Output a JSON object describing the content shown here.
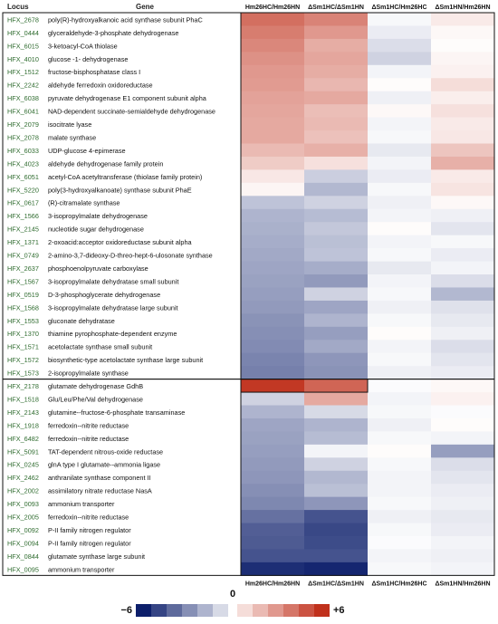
{
  "chart_data": {
    "type": "heatmap",
    "header": {
      "locus": "Locus",
      "gene": "Gene"
    },
    "columns": [
      "Hm26HC/Hm26HN",
      "ΔSm1HC/ΔSm1HN",
      "ΔSm1HC/Hm26HC",
      "ΔSm1HN/Hm26HN"
    ],
    "footer_columns": [
      "Hm26HC/Hm26HN",
      "ΔSm1HC/ΔSm1HN",
      "ΔSm1HC/Hm26HC",
      "ΔSm1HN/Hm26HN"
    ],
    "groups": [
      {
        "rows": 28
      },
      {
        "rows": 15
      }
    ],
    "rows": [
      {
        "locus": "HFX_2678",
        "gene": "poly(R)-hydroxyalkanoic acid synthase subunit PhaC",
        "values": [
          4.2,
          3.6,
          -0.2,
          0.6
        ]
      },
      {
        "locus": "HFX_0444",
        "gene": "glyceraldehyde-3-phosphate dehydrogenase",
        "values": [
          3.8,
          3.0,
          -0.5,
          0.2
        ]
      },
      {
        "locus": "HFX_6015",
        "gene": "3-ketoacyl-CoA thiolase",
        "values": [
          3.5,
          2.4,
          -0.9,
          0.1
        ]
      },
      {
        "locus": "HFX_4010",
        "gene": "glucose -1- dehydrogenase",
        "values": [
          3.2,
          2.6,
          -1.2,
          0.3
        ]
      },
      {
        "locus": "HFX_1512",
        "gene": "fructose-bisphosphatase class I",
        "values": [
          3.0,
          2.4,
          -0.3,
          0.4
        ]
      },
      {
        "locus": "HFX_2242",
        "gene": "aldehyde ferredoxin oxidoreductase",
        "values": [
          2.9,
          2.1,
          0.1,
          1.0
        ]
      },
      {
        "locus": "HFX_6038",
        "gene": "pyruvate dehydrogenase E1 component subunit alpha",
        "values": [
          2.7,
          2.5,
          -0.4,
          0.5
        ]
      },
      {
        "locus": "HFX_6041",
        "gene": "NAD-dependent succinate-semialdehyde dehydrogenase",
        "values": [
          2.6,
          1.9,
          0.2,
          0.9
        ]
      },
      {
        "locus": "HFX_2079",
        "gene": "isocitrate lyase",
        "values": [
          2.5,
          2.0,
          -0.3,
          0.6
        ]
      },
      {
        "locus": "HFX_2078",
        "gene": "malate synthase",
        "values": [
          2.5,
          1.8,
          -0.2,
          0.7
        ]
      },
      {
        "locus": "HFX_6033",
        "gene": "UDP-glucose 4-epimerase",
        "values": [
          2.0,
          2.3,
          -0.6,
          1.7
        ]
      },
      {
        "locus": "HFX_4023",
        "gene": "aldehyde dehydrogenase family protein",
        "values": [
          1.5,
          0.9,
          -0.3,
          2.3
        ]
      },
      {
        "locus": "HFX_6051",
        "gene": "acetyl-CoA acetyltransferase (thiolase family protein)",
        "values": [
          0.7,
          -1.3,
          -0.5,
          0.6
        ]
      },
      {
        "locus": "HFX_5220",
        "gene": "poly(3-hydroxyalkanoate) synthase subunit PhaE",
        "values": [
          0.3,
          -1.9,
          -0.2,
          0.8
        ]
      },
      {
        "locus": "HFX_0617",
        "gene": "(R)-citramalate synthase",
        "values": [
          -1.6,
          -1.2,
          -0.4,
          0.2
        ]
      },
      {
        "locus": "HFX_1566",
        "gene": "3-isopropylmalate dehydrogenase",
        "values": [
          -2.0,
          -1.8,
          -0.3,
          -0.4
        ]
      },
      {
        "locus": "HFX_2145",
        "gene": "nucleotide sugar dehydrogenase",
        "values": [
          -2.1,
          -1.5,
          0.1,
          -0.7
        ]
      },
      {
        "locus": "HFX_1371",
        "gene": "2-oxoacid:acceptor oxidoreductase subunit alpha",
        "values": [
          -2.2,
          -1.7,
          -0.3,
          -0.2
        ]
      },
      {
        "locus": "HFX_0749",
        "gene": "2-amino-3,7-dideoxy-D-threo-hept-6-ulosonate synthase",
        "values": [
          -2.3,
          -1.6,
          -0.2,
          -0.5
        ]
      },
      {
        "locus": "HFX_2637",
        "gene": "phosphoenolpyruvate carboxylase",
        "values": [
          -2.4,
          -2.2,
          -0.6,
          -0.3
        ]
      },
      {
        "locus": "HFX_1567",
        "gene": "3-isopropylmalate dehydratase small subunit",
        "values": [
          -2.5,
          -2.7,
          -0.3,
          -0.9
        ]
      },
      {
        "locus": "HFX_0519",
        "gene": "D-3-phosphoglycerate dehydrogenase",
        "values": [
          -2.6,
          -1.2,
          -0.2,
          -1.9
        ]
      },
      {
        "locus": "HFX_1568",
        "gene": "3-isopropylmalate dehydratase large subunit",
        "values": [
          -2.7,
          -2.4,
          -0.4,
          -0.8
        ]
      },
      {
        "locus": "HFX_1553",
        "gene": "gluconate dehydratase",
        "values": [
          -2.9,
          -2.0,
          -0.2,
          -0.6
        ]
      },
      {
        "locus": "HFX_1370",
        "gene": "thiamine pyrophosphate-dependent enzyme",
        "values": [
          -3.0,
          -2.6,
          0.1,
          -0.4
        ]
      },
      {
        "locus": "HFX_1571",
        "gene": "acetolactate synthase small subunit",
        "values": [
          -3.1,
          -2.3,
          -0.3,
          -0.9
        ]
      },
      {
        "locus": "HFX_1572",
        "gene": "biosynthetic-type acetolactate synthase large subunit",
        "values": [
          -3.3,
          -2.8,
          -0.2,
          -0.7
        ]
      },
      {
        "locus": "HFX_1573",
        "gene": "2-isopropylmalate synthase",
        "values": [
          -3.4,
          -2.9,
          -0.4,
          -0.5
        ]
      },
      {
        "locus": "HFX_2178",
        "gene": "glutamate dehydrogenase GdhB",
        "values": [
          5.8,
          4.5,
          -0.1,
          0.2
        ]
      },
      {
        "locus": "HFX_1518",
        "gene": "Glu/Leu/Phe/Val dehydrogenase",
        "values": [
          -1.2,
          2.5,
          -0.3,
          0.4
        ]
      },
      {
        "locus": "HFX_2143",
        "gene": "glutamine--fructose-6-phosphate transaminase",
        "values": [
          -2.0,
          -1.0,
          -0.2,
          -0.1
        ]
      },
      {
        "locus": "HFX_1918",
        "gene": "ferredoxin--nitrite reductase",
        "values": [
          -2.4,
          -2.0,
          -0.4,
          0.1
        ]
      },
      {
        "locus": "HFX_6482",
        "gene": "ferredoxin--nitrite reductase",
        "values": [
          -2.5,
          -1.8,
          -0.2,
          -0.3
        ]
      },
      {
        "locus": "HFX_5091",
        "gene": "TAT-dependent nitrous-oxide reductase",
        "values": [
          -2.6,
          -0.3,
          0.1,
          -2.6
        ]
      },
      {
        "locus": "HFX_0245",
        "gene": "glnA type I glutamate--ammonia ligase",
        "values": [
          -2.7,
          -1.2,
          -0.2,
          -0.9
        ]
      },
      {
        "locus": "HFX_2462",
        "gene": "anthranilate synthase component II",
        "values": [
          -2.8,
          -1.9,
          -0.3,
          -0.7
        ]
      },
      {
        "locus": "HFX_2002",
        "gene": "assimilatory nitrate reductase NasA",
        "values": [
          -3.0,
          -1.7,
          -0.3,
          -0.5
        ]
      },
      {
        "locus": "HFX_0093",
        "gene": "ammonium transporter",
        "values": [
          -3.2,
          -2.8,
          -0.2,
          -0.4
        ]
      },
      {
        "locus": "HFX_2005",
        "gene": "ferredoxin--nitrite reductase",
        "values": [
          -3.8,
          -4.6,
          -0.4,
          -0.6
        ]
      },
      {
        "locus": "HFX_0092",
        "gene": "P-II family nitrogen regulator",
        "values": [
          -4.3,
          -4.9,
          -0.2,
          -0.5
        ]
      },
      {
        "locus": "HFX_0094",
        "gene": "P-II family nitrogen regulator",
        "values": [
          -4.4,
          -4.8,
          -0.1,
          -0.3
        ]
      },
      {
        "locus": "HFX_0844",
        "gene": "glutamate synthase large subunit",
        "values": [
          -4.6,
          -4.6,
          -0.3,
          -0.4
        ]
      },
      {
        "locus": "HFX_0095",
        "gene": "ammonium transporter",
        "values": [
          -5.6,
          -5.8,
          -0.2,
          -0.3
        ]
      }
    ],
    "scale": {
      "min": -6,
      "mid": 0,
      "max": 6,
      "min_label": "−6",
      "mid_label": "0",
      "max_label": "+6",
      "negative_color": "#0d1f6b",
      "neutral_color": "#ffffff",
      "positive_color": "#c0311c",
      "steps": 6
    }
  }
}
